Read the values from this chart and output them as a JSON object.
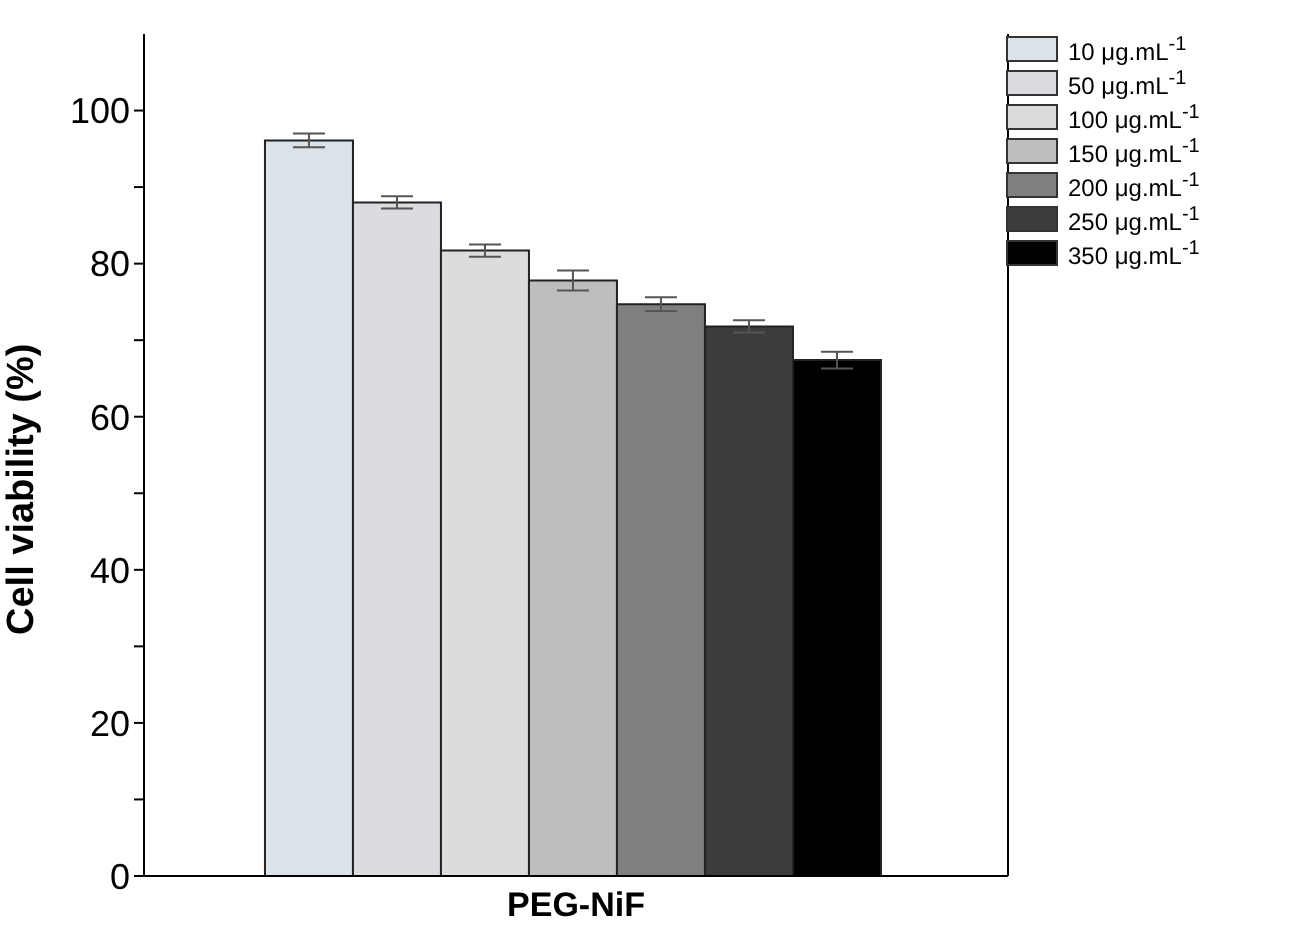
{
  "chart_data": {
    "type": "bar",
    "ylabel": "Cell viability (%)",
    "categories": [
      "PEG-NiF"
    ],
    "series": [
      {
        "name": "10 μg.mL$^{-1}$",
        "color": "#dbe3e8",
        "values": [
          96.1
        ],
        "errors": [
          0.9
        ]
      },
      {
        "name": "50 μg.mL$^{-1}$",
        "color": "#dcdbe0",
        "values": [
          88.0
        ],
        "errors": [
          0.8
        ]
      },
      {
        "name": "100 μg.mL$^{-1}$",
        "color": "#dcdcdc",
        "values": [
          81.7
        ],
        "errors": [
          0.8
        ]
      },
      {
        "name": "150 μg.mL$^{-1}$",
        "color": "#bebebe",
        "values": [
          77.8
        ],
        "errors": [
          1.3
        ]
      },
      {
        "name": "200 μg.mL$^{-1}$",
        "color": "#7f7f7f",
        "values": [
          74.7
        ],
        "errors": [
          0.9
        ]
      },
      {
        "name": "250 μg.mL$^{-1}$",
        "color": "#3c3c3c",
        "values": [
          71.8
        ],
        "errors": [
          0.8
        ]
      },
      {
        "name": "350 μg.mL$^{-1}$",
        "color": "#000000",
        "values": [
          67.4
        ],
        "errors": [
          1.1
        ]
      }
    ],
    "ylim": [
      0,
      110
    ],
    "yticks": [
      0,
      {
        "value": 10,
        "label": null
      },
      20,
      {
        "value": 30,
        "label": null
      },
      40,
      {
        "value": 50,
        "label": null
      },
      60,
      {
        "value": 70,
        "label": null
      },
      80,
      {
        "value": 90,
        "label": null
      },
      100
    ],
    "grid": false,
    "legend": "top right"
  }
}
